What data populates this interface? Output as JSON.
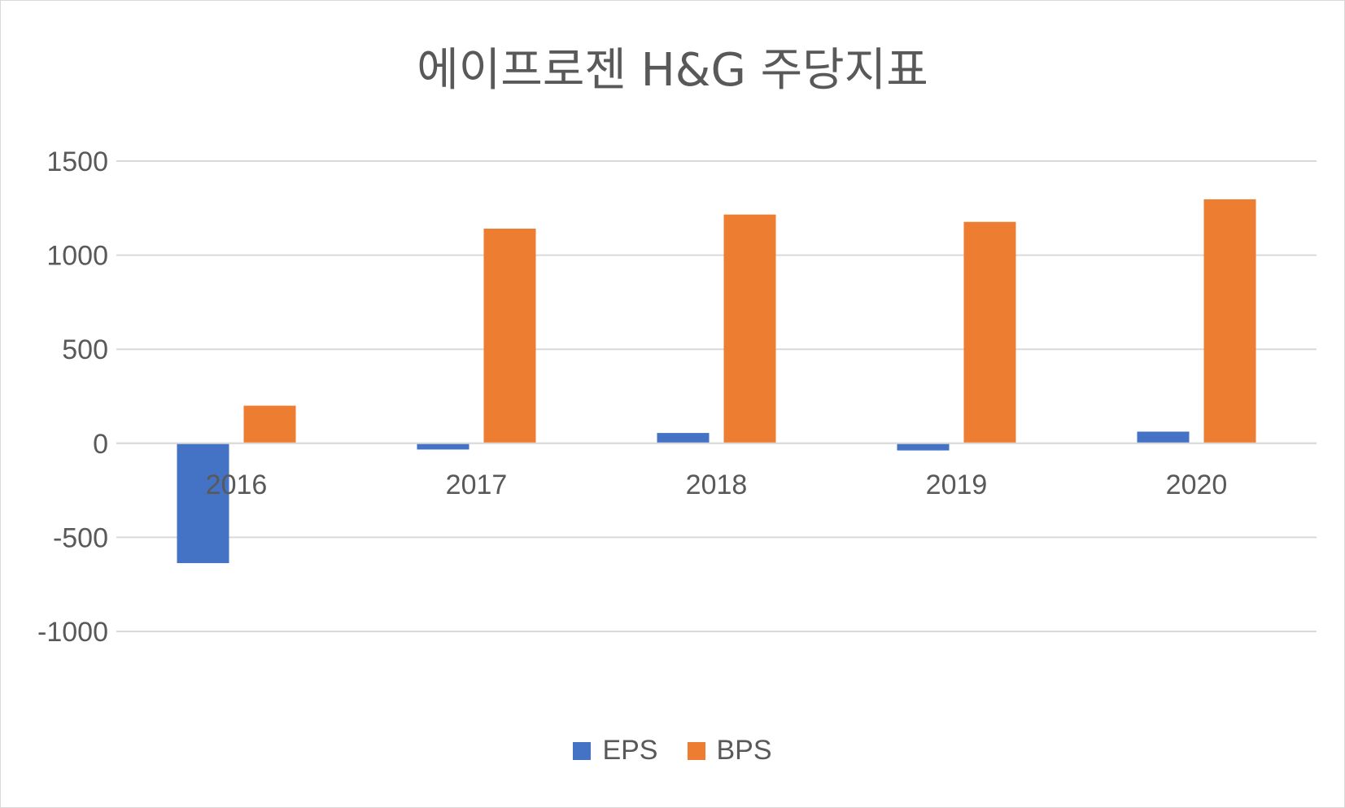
{
  "chart_data": {
    "type": "bar",
    "title": "에이프로젠 H&G 주당지표",
    "categories": [
      "2016",
      "2017",
      "2018",
      "2019",
      "2020"
    ],
    "series": [
      {
        "name": "EPS",
        "color": "#4472C4",
        "values": [
          -637,
          -33,
          55,
          -38,
          62
        ]
      },
      {
        "name": "BPS",
        "color": "#ED7D31",
        "values": [
          200,
          1141,
          1216,
          1177,
          1297
        ]
      }
    ],
    "xlabel": "",
    "ylabel": "",
    "ylim": [
      -1000,
      1500
    ],
    "yticks": [
      1500,
      1000,
      500,
      0,
      -500,
      -1000
    ],
    "grid": true,
    "legend_position": "bottom"
  }
}
